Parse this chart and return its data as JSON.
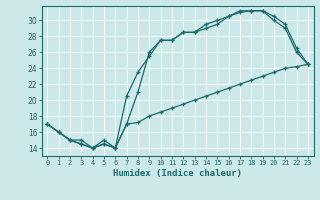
{
  "xlabel": "Humidex (Indice chaleur)",
  "bg_color": "#cde8e8",
  "line_color": "#1a6b6b",
  "grid_color": "#ffffff",
  "xlim": [
    -0.5,
    23.5
  ],
  "ylim": [
    13.0,
    31.8
  ],
  "xticks": [
    0,
    1,
    2,
    3,
    4,
    5,
    6,
    7,
    8,
    9,
    10,
    11,
    12,
    13,
    14,
    15,
    16,
    17,
    18,
    19,
    20,
    21,
    22,
    23
  ],
  "yticks": [
    14,
    16,
    18,
    20,
    22,
    24,
    26,
    28,
    30
  ],
  "line1_x": [
    0,
    1,
    2,
    3,
    4,
    5,
    6,
    7,
    8,
    9,
    10,
    11,
    12,
    13,
    14,
    15,
    16,
    17,
    18,
    19,
    20,
    21,
    22,
    23
  ],
  "line1_y": [
    17,
    16,
    15,
    15,
    14,
    15,
    14,
    17,
    21,
    26,
    27.5,
    27.5,
    28.5,
    28.5,
    29,
    29.5,
    30.5,
    31,
    31.2,
    31.2,
    30,
    29,
    26,
    24.5
  ],
  "line2_x": [
    0,
    1,
    2,
    3,
    4,
    5,
    6,
    7,
    8,
    9,
    10,
    11,
    12,
    13,
    14,
    15,
    16,
    17,
    18,
    19,
    20,
    21,
    22,
    23
  ],
  "line2_y": [
    17,
    16,
    15,
    14.5,
    14,
    14.5,
    14,
    20.5,
    23.5,
    25.5,
    27.5,
    27.5,
    28.5,
    28.5,
    29.5,
    30,
    30.5,
    31.2,
    31.2,
    31.2,
    30.5,
    29.5,
    26.5,
    24.5
  ],
  "line3_x": [
    0,
    1,
    2,
    3,
    4,
    5,
    6,
    7,
    8,
    9,
    10,
    11,
    12,
    13,
    14,
    15,
    16,
    17,
    18,
    19,
    20,
    21,
    22,
    23
  ],
  "line3_y": [
    17,
    16,
    15,
    14.5,
    14,
    14.5,
    14,
    17,
    17.2,
    18,
    18.5,
    19,
    19.5,
    20,
    20.5,
    21,
    21.5,
    22,
    22.5,
    23,
    23.5,
    24,
    24.2,
    24.5
  ]
}
